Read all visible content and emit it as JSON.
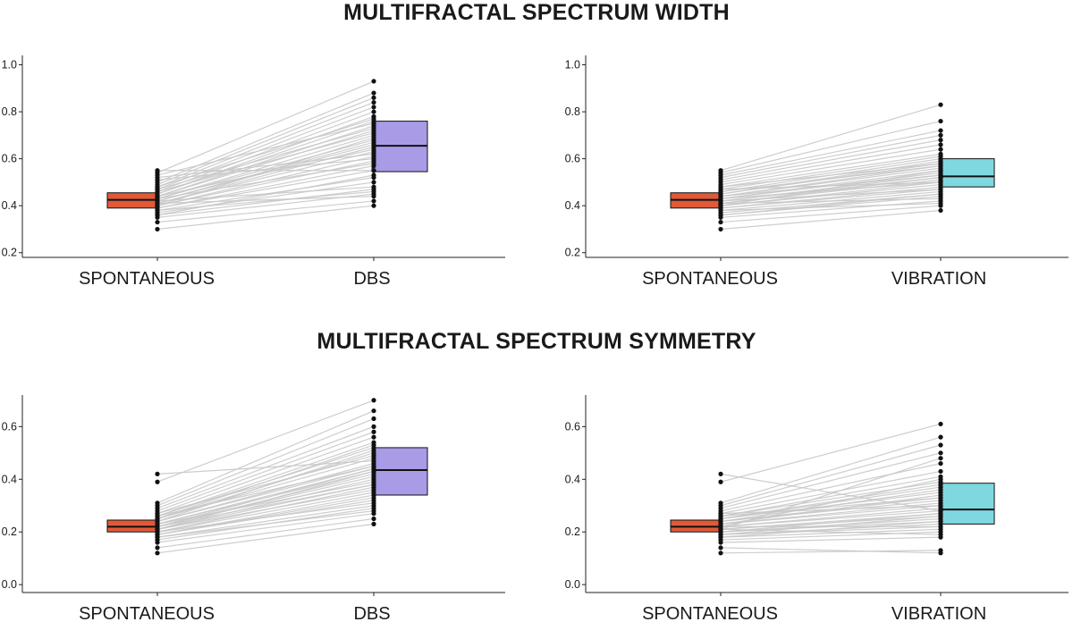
{
  "titles": {
    "top": "MULTIFRACTAL SPECTRUM WIDTH",
    "bottom": "MULTIFRACTAL SPECTRUM SYMMETRY"
  },
  "colors": {
    "spontaneous": "#e05a38",
    "dbs": "#a99be6",
    "vibration": "#7fd8e0",
    "lines": "#c8c8c8",
    "points": "#111111"
  },
  "chart_data": [
    {
      "type": "box",
      "panel": "width-dbs",
      "categories": [
        "SPONTANEOUS",
        "DBS"
      ],
      "ylim": [
        0.18,
        1.04
      ],
      "yticks": [
        "0.2",
        "0.4",
        "0.6",
        "0.8",
        "1.0"
      ],
      "boxes": [
        {
          "category": "SPONTANEOUS",
          "color_key": "spontaneous",
          "q1": 0.39,
          "median": 0.425,
          "q3": 0.455
        },
        {
          "category": "DBS",
          "color_key": "dbs",
          "q1": 0.545,
          "median": 0.655,
          "q3": 0.76
        }
      ],
      "pairs": [
        [
          0.3,
          0.4
        ],
        [
          0.33,
          0.42
        ],
        [
          0.35,
          0.45
        ],
        [
          0.36,
          0.47
        ],
        [
          0.37,
          0.5
        ],
        [
          0.38,
          0.52
        ],
        [
          0.39,
          0.55
        ],
        [
          0.39,
          0.57
        ],
        [
          0.4,
          0.59
        ],
        [
          0.4,
          0.61
        ],
        [
          0.41,
          0.63
        ],
        [
          0.41,
          0.65
        ],
        [
          0.42,
          0.66
        ],
        [
          0.42,
          0.67
        ],
        [
          0.43,
          0.68
        ],
        [
          0.43,
          0.7
        ],
        [
          0.44,
          0.72
        ],
        [
          0.44,
          0.74
        ],
        [
          0.45,
          0.76
        ],
        [
          0.45,
          0.78
        ],
        [
          0.46,
          0.8
        ],
        [
          0.47,
          0.82
        ],
        [
          0.48,
          0.84
        ],
        [
          0.49,
          0.86
        ],
        [
          0.5,
          0.88
        ],
        [
          0.51,
          0.6
        ],
        [
          0.52,
          0.62
        ],
        [
          0.53,
          0.75
        ],
        [
          0.54,
          0.93
        ],
        [
          0.55,
          0.55
        ],
        [
          0.41,
          0.44
        ],
        [
          0.42,
          0.48
        ],
        [
          0.43,
          0.58
        ],
        [
          0.44,
          0.64
        ],
        [
          0.38,
          0.46
        ],
        [
          0.4,
          0.69
        ],
        [
          0.46,
          0.71
        ],
        [
          0.47,
          0.73
        ],
        [
          0.36,
          0.53
        ],
        [
          0.48,
          0.77
        ]
      ]
    },
    {
      "type": "box",
      "panel": "width-vibration",
      "categories": [
        "SPONTANEOUS",
        "VIBRATION"
      ],
      "ylim": [
        0.18,
        1.04
      ],
      "yticks": [
        "0.2",
        "0.4",
        "0.6",
        "0.8",
        "1.0"
      ],
      "boxes": [
        {
          "category": "SPONTANEOUS",
          "color_key": "spontaneous",
          "q1": 0.39,
          "median": 0.425,
          "q3": 0.455
        },
        {
          "category": "VIBRATION",
          "color_key": "vibration",
          "q1": 0.48,
          "median": 0.525,
          "q3": 0.6
        }
      ],
      "pairs": [
        [
          0.3,
          0.38
        ],
        [
          0.33,
          0.4
        ],
        [
          0.35,
          0.42
        ],
        [
          0.36,
          0.44
        ],
        [
          0.37,
          0.45
        ],
        [
          0.38,
          0.46
        ],
        [
          0.39,
          0.47
        ],
        [
          0.39,
          0.48
        ],
        [
          0.4,
          0.49
        ],
        [
          0.4,
          0.5
        ],
        [
          0.41,
          0.51
        ],
        [
          0.41,
          0.52
        ],
        [
          0.42,
          0.52
        ],
        [
          0.42,
          0.53
        ],
        [
          0.43,
          0.54
        ],
        [
          0.43,
          0.55
        ],
        [
          0.44,
          0.56
        ],
        [
          0.44,
          0.57
        ],
        [
          0.45,
          0.58
        ],
        [
          0.45,
          0.59
        ],
        [
          0.46,
          0.6
        ],
        [
          0.47,
          0.61
        ],
        [
          0.48,
          0.62
        ],
        [
          0.49,
          0.64
        ],
        [
          0.5,
          0.66
        ],
        [
          0.51,
          0.68
        ],
        [
          0.52,
          0.7
        ],
        [
          0.53,
          0.72
        ],
        [
          0.54,
          0.76
        ],
        [
          0.55,
          0.83
        ],
        [
          0.41,
          0.43
        ],
        [
          0.42,
          0.47
        ],
        [
          0.43,
          0.5
        ],
        [
          0.44,
          0.53
        ],
        [
          0.38,
          0.41
        ],
        [
          0.4,
          0.55
        ],
        [
          0.46,
          0.57
        ],
        [
          0.47,
          0.5
        ],
        [
          0.36,
          0.45
        ],
        [
          0.48,
          0.58
        ]
      ]
    },
    {
      "type": "box",
      "panel": "symmetry-dbs",
      "categories": [
        "SPONTANEOUS",
        "DBS"
      ],
      "ylim": [
        -0.03,
        0.72
      ],
      "yticks": [
        "0.0",
        "0.2",
        "0.4",
        "0.6"
      ],
      "boxes": [
        {
          "category": "SPONTANEOUS",
          "color_key": "spontaneous",
          "q1": 0.2,
          "median": 0.22,
          "q3": 0.245
        },
        {
          "category": "DBS",
          "color_key": "dbs",
          "q1": 0.34,
          "median": 0.435,
          "q3": 0.52
        }
      ],
      "pairs": [
        [
          0.12,
          0.23
        ],
        [
          0.14,
          0.25
        ],
        [
          0.16,
          0.27
        ],
        [
          0.17,
          0.29
        ],
        [
          0.18,
          0.3
        ],
        [
          0.19,
          0.32
        ],
        [
          0.19,
          0.34
        ],
        [
          0.2,
          0.35
        ],
        [
          0.2,
          0.37
        ],
        [
          0.21,
          0.38
        ],
        [
          0.21,
          0.4
        ],
        [
          0.22,
          0.41
        ],
        [
          0.22,
          0.42
        ],
        [
          0.23,
          0.43
        ],
        [
          0.23,
          0.44
        ],
        [
          0.24,
          0.45
        ],
        [
          0.24,
          0.46
        ],
        [
          0.25,
          0.48
        ],
        [
          0.25,
          0.5
        ],
        [
          0.26,
          0.52
        ],
        [
          0.26,
          0.54
        ],
        [
          0.27,
          0.56
        ],
        [
          0.28,
          0.58
        ],
        [
          0.29,
          0.6
        ],
        [
          0.3,
          0.63
        ],
        [
          0.31,
          0.66
        ],
        [
          0.39,
          0.7
        ],
        [
          0.42,
          0.47
        ],
        [
          0.21,
          0.36
        ],
        [
          0.23,
          0.39
        ],
        [
          0.22,
          0.44
        ],
        [
          0.2,
          0.31
        ],
        [
          0.24,
          0.51
        ],
        [
          0.25,
          0.53
        ],
        [
          0.18,
          0.28
        ],
        [
          0.27,
          0.49
        ],
        [
          0.19,
          0.33
        ],
        [
          0.26,
          0.45
        ],
        [
          0.22,
          0.38
        ],
        [
          0.21,
          0.43
        ]
      ]
    },
    {
      "type": "box",
      "panel": "symmetry-vibration",
      "categories": [
        "SPONTANEOUS",
        "VIBRATION"
      ],
      "ylim": [
        -0.03,
        0.72
      ],
      "yticks": [
        "0.0",
        "0.2",
        "0.4",
        "0.6"
      ],
      "boxes": [
        {
          "category": "SPONTANEOUS",
          "color_key": "spontaneous",
          "q1": 0.2,
          "median": 0.22,
          "q3": 0.245
        },
        {
          "category": "VIBRATION",
          "color_key": "vibration",
          "q1": 0.23,
          "median": 0.285,
          "q3": 0.385
        }
      ],
      "pairs": [
        [
          0.12,
          0.13
        ],
        [
          0.14,
          0.12
        ],
        [
          0.16,
          0.18
        ],
        [
          0.17,
          0.2
        ],
        [
          0.18,
          0.21
        ],
        [
          0.19,
          0.22
        ],
        [
          0.19,
          0.23
        ],
        [
          0.2,
          0.24
        ],
        [
          0.2,
          0.25
        ],
        [
          0.21,
          0.26
        ],
        [
          0.21,
          0.27
        ],
        [
          0.22,
          0.28
        ],
        [
          0.22,
          0.29
        ],
        [
          0.23,
          0.3
        ],
        [
          0.23,
          0.31
        ],
        [
          0.24,
          0.32
        ],
        [
          0.24,
          0.33
        ],
        [
          0.25,
          0.35
        ],
        [
          0.25,
          0.37
        ],
        [
          0.26,
          0.39
        ],
        [
          0.26,
          0.41
        ],
        [
          0.27,
          0.43
        ],
        [
          0.28,
          0.46
        ],
        [
          0.29,
          0.5
        ],
        [
          0.3,
          0.53
        ],
        [
          0.31,
          0.56
        ],
        [
          0.39,
          0.61
        ],
        [
          0.42,
          0.28
        ],
        [
          0.21,
          0.19
        ],
        [
          0.23,
          0.34
        ],
        [
          0.22,
          0.22
        ],
        [
          0.2,
          0.27
        ],
        [
          0.24,
          0.36
        ],
        [
          0.25,
          0.38
        ],
        [
          0.18,
          0.24
        ],
        [
          0.27,
          0.3
        ],
        [
          0.19,
          0.26
        ],
        [
          0.26,
          0.33
        ],
        [
          0.22,
          0.4
        ],
        [
          0.21,
          0.48
        ]
      ]
    }
  ]
}
